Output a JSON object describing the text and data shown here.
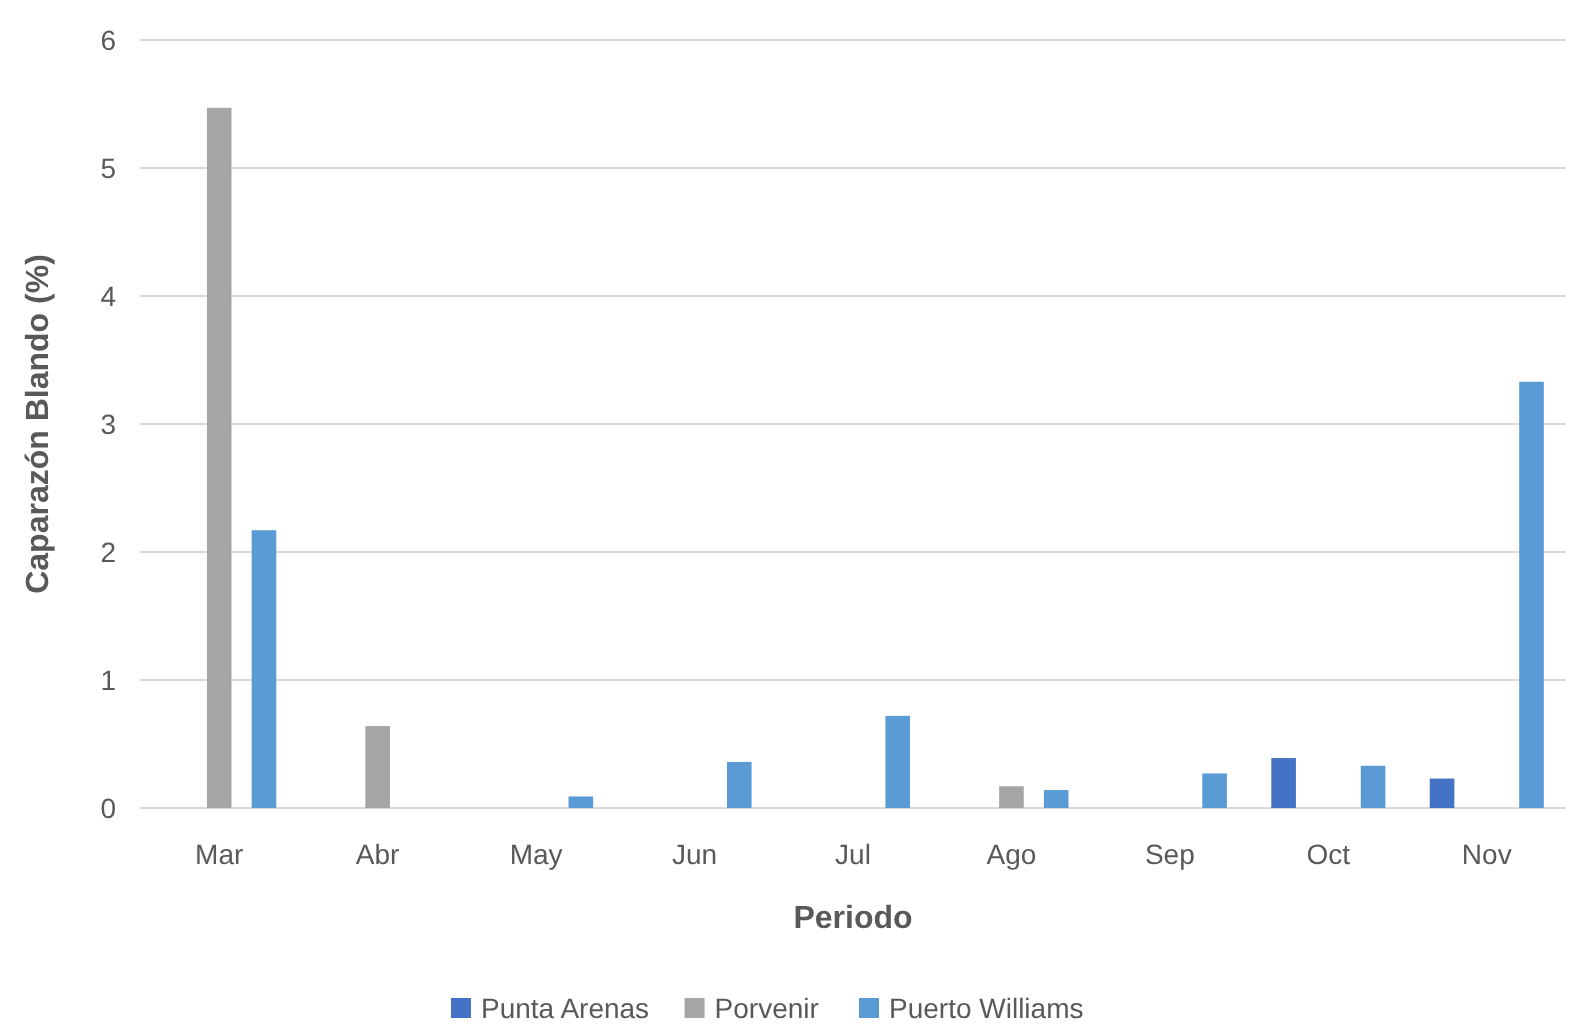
{
  "chart_data": {
    "type": "bar",
    "xlabel": "Periodo",
    "ylabel": "Caparazón Blando (%)",
    "categories": [
      "Mar",
      "Abr",
      "May",
      "Jun",
      "Jul",
      "Ago",
      "Sep",
      "Oct",
      "Nov"
    ],
    "series": [
      {
        "name": "Punta Arenas",
        "color": "#4472c4",
        "values": [
          null,
          null,
          null,
          null,
          null,
          null,
          null,
          0.39,
          0.23
        ]
      },
      {
        "name": "Porvenir",
        "color": "#a5a5a5",
        "values": [
          5.47,
          0.64,
          null,
          null,
          null,
          0.17,
          null,
          null,
          null
        ]
      },
      {
        "name": "Puerto Williams",
        "color": "#5b9bd5",
        "values": [
          2.17,
          null,
          0.09,
          0.36,
          0.72,
          0.14,
          0.27,
          0.33,
          3.33
        ]
      }
    ],
    "ylim": [
      0,
      6
    ],
    "yticks": [
      0,
      1,
      2,
      3,
      4,
      5,
      6
    ],
    "grid": "y",
    "legend": "bottom"
  }
}
